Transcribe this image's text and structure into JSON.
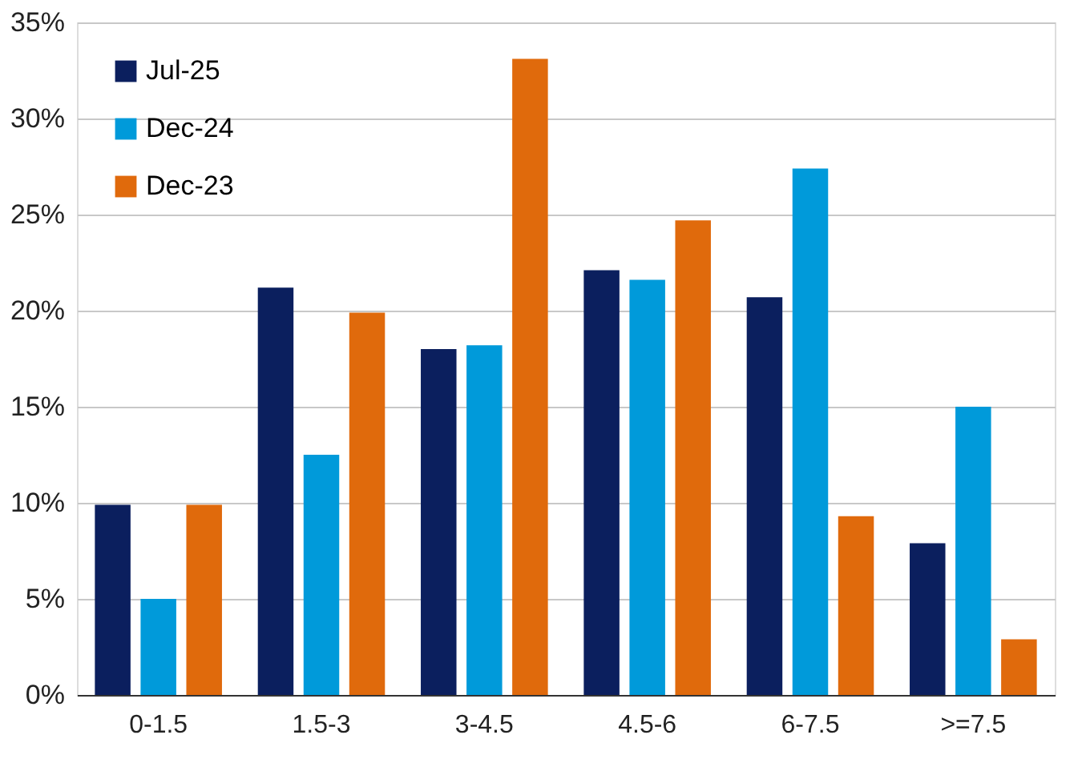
{
  "chart_data": {
    "type": "bar",
    "categories": [
      "0-1.5",
      "1.5-3",
      "3-4.5",
      "4.5-6",
      "6-7.5",
      ">=7.5"
    ],
    "series": [
      {
        "name": "Jul-25",
        "color": "#0b1f5e",
        "values": [
          9.9,
          21.2,
          18.0,
          22.1,
          20.7,
          7.9
        ]
      },
      {
        "name": "Dec-24",
        "color": "#009ada",
        "values": [
          5.0,
          12.5,
          18.2,
          21.6,
          27.4,
          15.0
        ]
      },
      {
        "name": "Dec-23",
        "color": "#e06a0c",
        "values": [
          9.9,
          19.9,
          33.1,
          24.7,
          9.3,
          2.9
        ]
      }
    ],
    "ylim": [
      0,
      35
    ],
    "yticks": [
      {
        "value": 0,
        "label": "0%"
      },
      {
        "value": 5,
        "label": "5%"
      },
      {
        "value": 10,
        "label": "10%"
      },
      {
        "value": 15,
        "label": "15%"
      },
      {
        "value": 20,
        "label": "20%"
      },
      {
        "value": 25,
        "label": "25%"
      },
      {
        "value": 30,
        "label": "30%"
      },
      {
        "value": 35,
        "label": "35%"
      }
    ],
    "grid": "y",
    "legend": "top left"
  }
}
